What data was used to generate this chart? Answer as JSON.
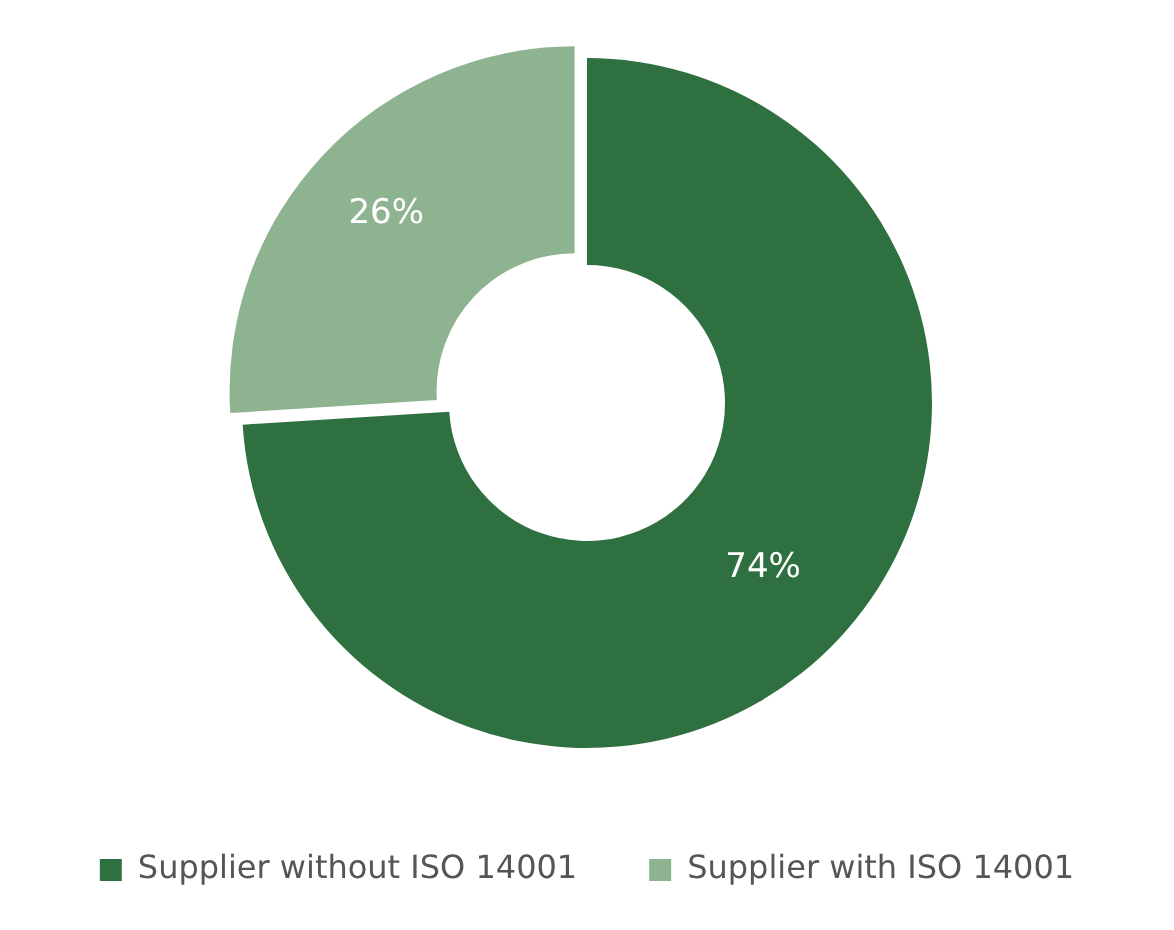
{
  "chart_data": {
    "type": "donut",
    "categories": [
      "Supplier without ISO 14001",
      "Supplier with ISO 14001"
    ],
    "values": [
      74,
      26
    ],
    "colors": [
      "#2f7040",
      "#8db391"
    ],
    "value_labels": [
      "74%",
      "26%"
    ],
    "legend": "bottom"
  }
}
